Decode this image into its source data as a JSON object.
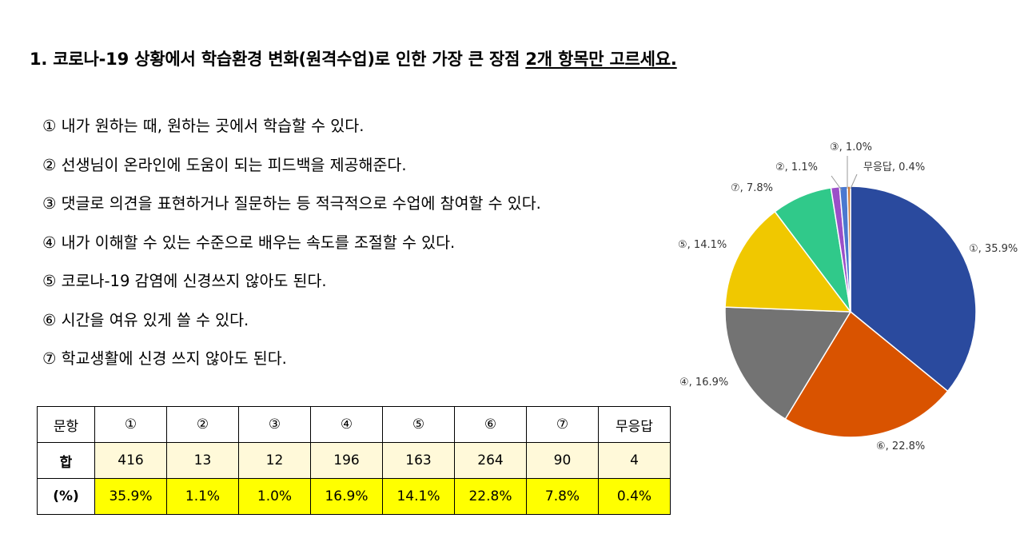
{
  "question": {
    "prefix": "1. 코로나-19 상황에서 학습환경 변화(원격수업)로 인한 가장 큰 장점 ",
    "emphasis": "2개 항목만 고르세요."
  },
  "options": [
    "① 내가 원하는 때, 원하는 곳에서 학습할 수 있다.",
    "② 선생님이 온라인에 도움이 되는 피드백을 제공해준다.",
    "③ 댓글로 의견을 표현하거나 질문하는 등 적극적으로 수업에 참여할 수 있다.",
    "④ 내가 이해할 수 있는 수준으로 배우는 속도를 조절할 수 있다.",
    "⑤ 코로나-19 감염에 신경쓰지 않아도 된다.",
    "⑥ 시간을 여유 있게 쓸 수 있다.",
    "⑦ 학교생활에 신경 쓰지 않아도 된다."
  ],
  "table": {
    "header_label": "문항",
    "sum_label": "합",
    "pct_label": "(%)",
    "columns": [
      "①",
      "②",
      "③",
      "④",
      "⑤",
      "⑥",
      "⑦",
      "무응답"
    ],
    "sums": [
      "416",
      "13",
      "12",
      "196",
      "163",
      "264",
      "90",
      "4"
    ],
    "percents": [
      "35.9%",
      "1.1%",
      "1.0%",
      "16.9%",
      "14.1%",
      "22.8%",
      "7.8%",
      "0.4%"
    ]
  },
  "chart_data": {
    "type": "pie",
    "start": "12 o'clock",
    "direction": "clockwise",
    "slices": [
      {
        "label": "①, 35.9%",
        "value": 35.9,
        "color": "#2a4a9e"
      },
      {
        "label": "⑥, 22.8%",
        "value": 22.8,
        "color": "#d95300"
      },
      {
        "label": "④, 16.9%",
        "value": 16.9,
        "color": "#737373"
      },
      {
        "label": "⑤, 14.1%",
        "value": 14.1,
        "color": "#f0c800"
      },
      {
        "label": "⑦, 7.8%",
        "value": 7.8,
        "color": "#30c98a"
      },
      {
        "label": "②, 1.1%",
        "value": 1.1,
        "color": "#9b4fc8"
      },
      {
        "label": "③, 1.0%",
        "value": 1.0,
        "color": "#4a78d0"
      },
      {
        "label": "무응답, 0.4%",
        "value": 0.4,
        "color": "#c97a3a"
      }
    ]
  }
}
